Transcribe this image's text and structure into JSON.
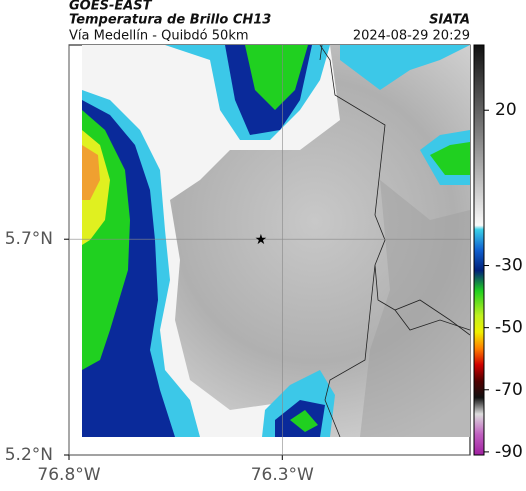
{
  "header": {
    "satellite": "GOES-EAST",
    "product": "Temperatura de Brillo CH13",
    "source": "SIATA",
    "route": "Vía Medellín - Quibdó 50km",
    "timestamp": "2024-08-29 20:29"
  },
  "map": {
    "xlim": [
      -76.8,
      -75.86
    ],
    "ylim": [
      5.2,
      6.15
    ],
    "xticks": [
      {
        "value": -76.8,
        "label": "76.8°W"
      },
      {
        "value": -76.3,
        "label": "76.3°W"
      }
    ],
    "yticks": [
      {
        "value": 5.7,
        "label": "5.7°N"
      },
      {
        "value": 5.2,
        "label": "5.2°N"
      }
    ],
    "marker": {
      "lon": -76.35,
      "lat": 5.7
    }
  },
  "colorbar": {
    "lim": [
      41,
      -91
    ],
    "ticks": [
      20,
      -30,
      -50,
      -70,
      -90
    ]
  }
}
